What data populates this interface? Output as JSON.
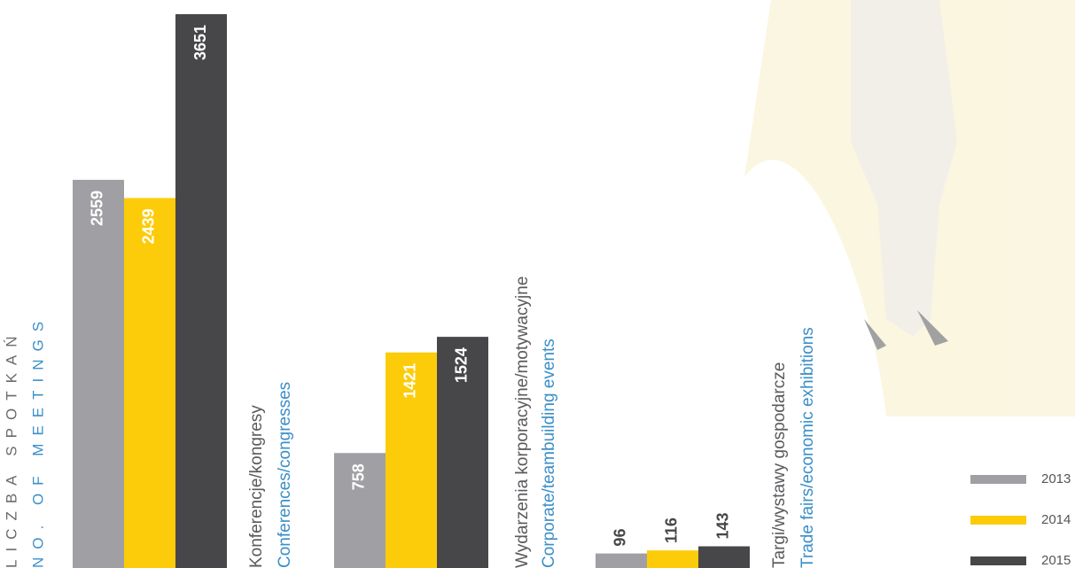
{
  "chart_data": {
    "type": "bar",
    "y_label": "LICZBA SPOTKAŃ",
    "y_label_en": "NO. OF MEETINGS",
    "categories": [
      "Konferencje/kongresy",
      "Wydarzenia korporacyjne/motywacyjne",
      "Targi/wystawy gospodarcze"
    ],
    "categories_en": [
      "Conferences/congresses",
      "Corporate/teambuilding events",
      "Trade fairs/economic exhibitions"
    ],
    "series": [
      {
        "name": "2013",
        "color": "#a0a0a4",
        "values": [
          2559,
          758,
          96
        ]
      },
      {
        "name": "2014",
        "color": "#fccc0a",
        "values": [
          2439,
          1421,
          116
        ]
      },
      {
        "name": "2015",
        "color": "#47474a",
        "values": [
          3651,
          1524,
          143
        ]
      }
    ]
  }
}
